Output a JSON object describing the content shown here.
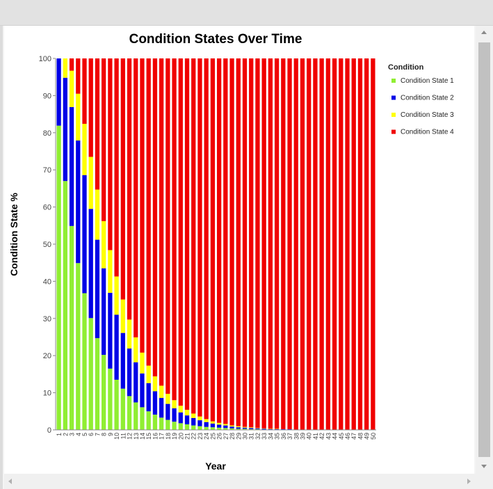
{
  "chart_data": {
    "type": "bar",
    "stacked": true,
    "title": "Condition States Over Time",
    "xlabel": "Year",
    "ylabel": "Condition State %",
    "ylim": [
      0,
      100
    ],
    "yticks": [
      0,
      10,
      20,
      30,
      40,
      50,
      60,
      70,
      80,
      90,
      100
    ],
    "legend": {
      "title": "Condition",
      "position": "right"
    },
    "categories": [
      "1",
      "2",
      "3",
      "4",
      "5",
      "6",
      "7",
      "8",
      "9",
      "10",
      "11",
      "12",
      "13",
      "14",
      "15",
      "16",
      "17",
      "18",
      "19",
      "20",
      "21",
      "22",
      "23",
      "24",
      "25",
      "26",
      "27",
      "28",
      "29",
      "30",
      "31",
      "32",
      "33",
      "34",
      "35",
      "36",
      "37",
      "38",
      "39",
      "40",
      "41",
      "42",
      "43",
      "44",
      "45",
      "46",
      "47",
      "48",
      "49",
      "50"
    ],
    "series": [
      {
        "name": "Condition State 1",
        "color": "#90ee32",
        "values": [
          81.9,
          67.0,
          54.9,
          44.9,
          36.8,
          30.1,
          24.7,
          20.2,
          16.5,
          13.5,
          11.1,
          9.1,
          7.4,
          6.1,
          5.0,
          4.1,
          3.3,
          2.7,
          2.2,
          1.8,
          1.5,
          1.2,
          1.0,
          0.8,
          0.7,
          0.6,
          0.5,
          0.4,
          0.3,
          0.3,
          0.2,
          0.2,
          0.1,
          0.1,
          0.1,
          0.1,
          0.1,
          0,
          0,
          0,
          0,
          0,
          0,
          0,
          0,
          0,
          0,
          0,
          0,
          0
        ]
      },
      {
        "name": "Condition State 2",
        "color": "#0000e6",
        "values": [
          18.1,
          27.8,
          32.0,
          33.0,
          31.8,
          29.4,
          26.5,
          23.3,
          20.4,
          17.5,
          15.0,
          12.8,
          10.8,
          9.1,
          7.6,
          6.3,
          5.3,
          4.3,
          3.6,
          2.9,
          2.4,
          2.0,
          1.6,
          1.3,
          1.0,
          0.8,
          0.7,
          0.5,
          0.4,
          0.3,
          0.3,
          0.2,
          0.2,
          0.1,
          0.1,
          0.1,
          0.1,
          0.1,
          0,
          0,
          0,
          0,
          0,
          0,
          0,
          0,
          0,
          0,
          0,
          0
        ]
      },
      {
        "name": "Condition State 3",
        "color": "#ffff00",
        "values": [
          0.0,
          5.2,
          9.8,
          12.6,
          13.8,
          14.0,
          13.5,
          12.7,
          11.5,
          10.3,
          9.0,
          7.8,
          6.7,
          5.6,
          4.7,
          4.0,
          3.3,
          2.7,
          2.2,
          1.8,
          1.5,
          1.2,
          1.0,
          0.8,
          0.6,
          0.5,
          0.4,
          0.3,
          0.3,
          0.2,
          0.2,
          0.1,
          0.1,
          0.1,
          0.1,
          0,
          0,
          0,
          0,
          0,
          0,
          0,
          0,
          0,
          0,
          0,
          0,
          0,
          0,
          0
        ]
      },
      {
        "name": "Condition State 4",
        "color": "#f00000",
        "values": [
          0.0,
          0.0,
          3.3,
          9.5,
          17.6,
          26.5,
          35.3,
          43.8,
          51.6,
          58.7,
          64.9,
          70.3,
          75.1,
          79.2,
          82.7,
          85.6,
          88.1,
          90.3,
          92.0,
          93.5,
          94.6,
          95.6,
          96.4,
          97.1,
          97.7,
          98.1,
          98.4,
          98.8,
          99.0,
          99.2,
          99.3,
          99.5,
          99.6,
          99.7,
          99.7,
          99.8,
          99.8,
          99.9,
          100,
          100,
          100,
          100,
          100,
          100,
          100,
          100,
          100,
          100,
          100,
          100
        ]
      }
    ]
  }
}
